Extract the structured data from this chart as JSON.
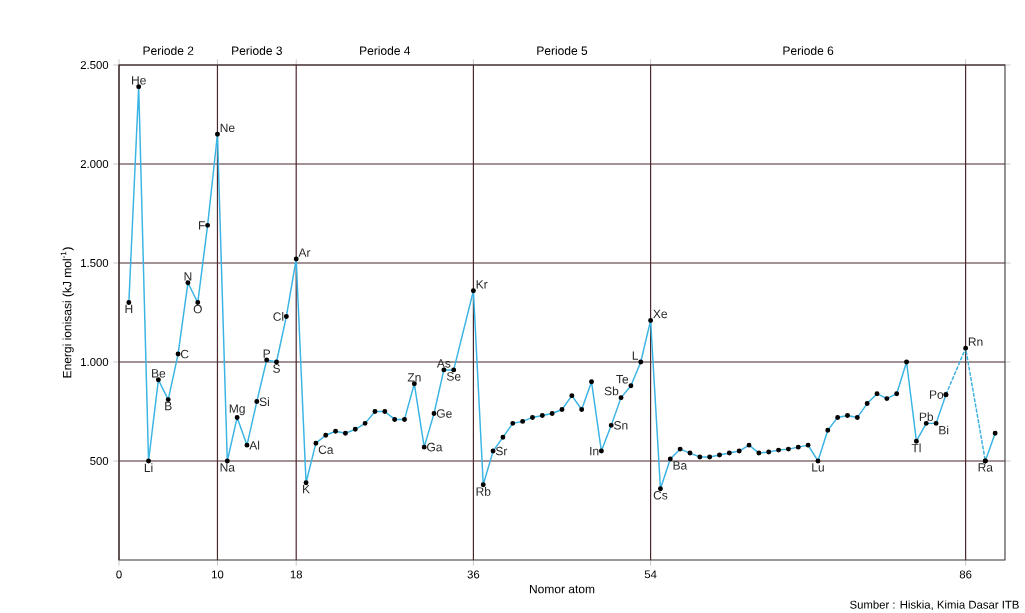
{
  "chart_data": {
    "type": "line",
    "xlabel": "Nomor atom",
    "ylabel": "Energi ionisasi (kJ mol$^{-1}$)",
    "xlim": [
      0,
      90
    ],
    "ylim": [
      0,
      2500
    ],
    "xticks": [
      0,
      10,
      18,
      36,
      54,
      86
    ],
    "yticks": [
      {
        "value": 500,
        "label": "500"
      },
      {
        "value": 1000,
        "label": "1.000"
      },
      {
        "value": 1500,
        "label": "1.500"
      },
      {
        "value": 2000,
        "label": "2.000"
      },
      {
        "value": 2500,
        "label": "2.500"
      }
    ],
    "grid": true,
    "marker": "circle",
    "line_style": "solid",
    "series": [
      {
        "color": "#3ab4e4",
        "x": [
          1,
          2,
          3,
          4,
          5,
          6,
          7,
          8,
          9,
          10,
          11,
          12,
          13,
          14,
          15,
          16,
          17,
          18,
          19,
          20,
          21,
          22,
          23,
          24,
          25,
          26,
          27,
          28,
          29,
          30,
          31,
          32,
          33,
          34,
          36,
          37,
          38,
          39,
          40,
          41,
          42,
          43,
          44,
          45,
          46,
          47,
          48,
          49,
          50,
          51,
          52,
          53,
          54,
          55,
          56,
          57,
          58,
          59,
          60,
          61,
          62,
          63,
          64,
          65,
          66,
          67,
          68,
          69,
          70,
          71,
          72,
          73,
          74,
          75,
          76,
          77,
          78,
          79,
          80,
          81,
          82,
          83,
          84,
          85,
          87,
          88,
          89
        ],
        "values": [
          1300,
          2390,
          500,
          910,
          810,
          1040,
          1400,
          1300,
          1690,
          2150,
          500,
          720,
          580,
          800,
          1010,
          1000,
          1230,
          1520,
          390,
          590,
          630,
          650,
          640,
          660,
          690,
          750,
          750,
          710,
          710,
          890,
          570,
          740,
          960,
          960,
          1360,
          380,
          550,
          620,
          690,
          700,
          720,
          730,
          740,
          760,
          830,
          760,
          900,
          550,
          680,
          820,
          880,
          1000,
          1210,
          360,
          510,
          560,
          540,
          520,
          520,
          530,
          540,
          550,
          580,
          540,
          545,
          555,
          560,
          570,
          580,
          500,
          655,
          720,
          730,
          720,
          790,
          840,
          815,
          840,
          1000,
          600,
          690,
          690,
          835,
          null,
          null,
          500,
          640
        ]
      },
      {
        "color": "#3cb0e0",
        "x": [
          84,
          86,
          88
        ],
        "values": [
          835,
          1070,
          500
        ],
        "line_style": "dashed"
      }
    ],
    "annotations": [
      "Periode 2",
      "Periode 3",
      "Periode 4",
      "Periode 5",
      "Periode 6",
      {
        "text": "H",
        "x": 1,
        "y": 1300
      },
      {
        "text": "He",
        "x": 2,
        "y": 2390
      },
      {
        "text": "Li",
        "x": 3,
        "y": 500
      },
      {
        "text": "Be",
        "x": 4,
        "y": 910
      },
      {
        "text": "B",
        "x": 5,
        "y": 810
      },
      {
        "text": "C",
        "x": 6,
        "y": 1040
      },
      {
        "text": "N",
        "x": 7,
        "y": 1400
      },
      {
        "text": "O",
        "x": 8,
        "y": 1300
      },
      {
        "text": "F",
        "x": 9,
        "y": 1690
      },
      {
        "text": "Ne",
        "x": 10,
        "y": 2150
      },
      {
        "text": "Na",
        "x": 11,
        "y": 500
      },
      {
        "text": "Mg",
        "x": 12,
        "y": 720
      },
      {
        "text": "Al",
        "x": 13,
        "y": 580
      },
      {
        "text": "Si",
        "x": 14,
        "y": 800
      },
      {
        "text": "P",
        "x": 15,
        "y": 1010
      },
      {
        "text": "S",
        "x": 16,
        "y": 1000
      },
      {
        "text": "Cl",
        "x": 17,
        "y": 1230
      },
      {
        "text": "Ar",
        "x": 18,
        "y": 1520
      },
      {
        "text": "K",
        "x": 19,
        "y": 390
      },
      {
        "text": "Ca",
        "x": 20,
        "y": 590
      },
      {
        "text": "Zn",
        "x": 30,
        "y": 890
      },
      {
        "text": "Ga",
        "x": 31,
        "y": 570
      },
      {
        "text": "Ge",
        "x": 32,
        "y": 740
      },
      {
        "text": "As",
        "x": 33,
        "y": 960
      },
      {
        "text": "Se",
        "x": 34,
        "y": 960
      },
      {
        "text": "Kr",
        "x": 36,
        "y": 1360
      },
      {
        "text": "Rb",
        "x": 37,
        "y": 380
      },
      {
        "text": "Sr",
        "x": 38,
        "y": 550
      },
      {
        "text": "In",
        "x": 49,
        "y": 550
      },
      {
        "text": "Sb",
        "x": 51,
        "y": 820
      },
      {
        "text": "Sn",
        "x": 50,
        "y": 680
      },
      {
        "text": "Te",
        "x": 52,
        "y": 880
      },
      {
        "text": "L",
        "x": 53,
        "y": 1000
      },
      {
        "text": "Xe",
        "x": 54,
        "y": 1210
      },
      {
        "text": "Cs",
        "x": 55,
        "y": 360
      },
      {
        "text": "Ba",
        "x": 56,
        "y": 510
      },
      {
        "text": "Lu",
        "x": 71,
        "y": 500
      },
      {
        "text": "Tl",
        "x": 81,
        "y": 600
      },
      {
        "text": "Pb",
        "x": 82,
        "y": 690
      },
      {
        "text": "Po",
        "x": 84,
        "y": 835
      },
      {
        "text": "Bi",
        "x": 83,
        "y": 690
      },
      {
        "text": "Rn",
        "x": 86,
        "y": 1070
      },
      {
        "text": "Ra",
        "x": 88,
        "y": 500
      },
      "Sumber : Hiskia, Kimia Dasar ITB"
    ]
  }
}
